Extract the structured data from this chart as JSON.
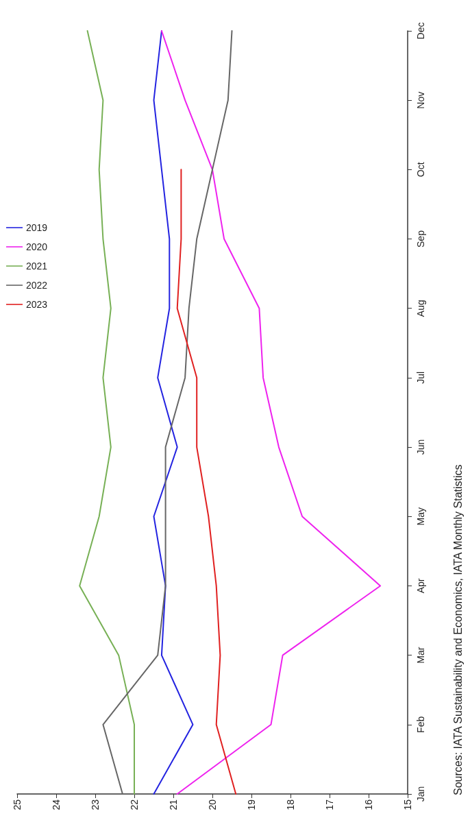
{
  "chart_data": {
    "type": "line",
    "categories": [
      "Dec",
      "Nov",
      "Oct",
      "Sep",
      "Aug",
      "Jul",
      "Jun",
      "May",
      "Apr",
      "Mar",
      "Feb",
      "Jan"
    ],
    "series": [
      {
        "name": "2019",
        "color": "#2323e0",
        "values": [
          21.3,
          21.5,
          21.3,
          21.1,
          21.1,
          21.4,
          20.9,
          21.5,
          21.2,
          21.3,
          20.5,
          21.5
        ]
      },
      {
        "name": "2020",
        "color": "#ee22ee",
        "values": [
          21.3,
          20.7,
          20.0,
          19.7,
          18.8,
          18.7,
          18.3,
          17.7,
          15.7,
          18.2,
          18.5,
          20.9
        ]
      },
      {
        "name": "2021",
        "color": "#77b055",
        "values": [
          23.2,
          22.8,
          22.9,
          22.8,
          22.6,
          22.8,
          22.6,
          22.9,
          23.4,
          22.4,
          22.0,
          22.0
        ]
      },
      {
        "name": "2022",
        "color": "#666666",
        "values": [
          19.5,
          19.6,
          20.0,
          20.4,
          20.6,
          20.7,
          21.2,
          21.2,
          21.2,
          21.4,
          22.8,
          22.3
        ]
      },
      {
        "name": "2023",
        "color": "#e02020",
        "values": [
          null,
          null,
          20.8,
          20.8,
          20.9,
          20.4,
          20.4,
          20.1,
          19.9,
          19.8,
          19.9,
          19.4
        ]
      }
    ],
    "orientation": "horizontal",
    "xlim": [
      25,
      15
    ],
    "xticks": [
      25,
      24,
      23,
      22,
      21,
      20,
      19,
      18,
      17,
      16,
      15
    ],
    "grid": false,
    "legend": "left",
    "marker": "none",
    "line_style": "solid",
    "annotations": [
      "Sources: IATA Sustainability and Economics, IATA Monthly Statistics"
    ]
  }
}
